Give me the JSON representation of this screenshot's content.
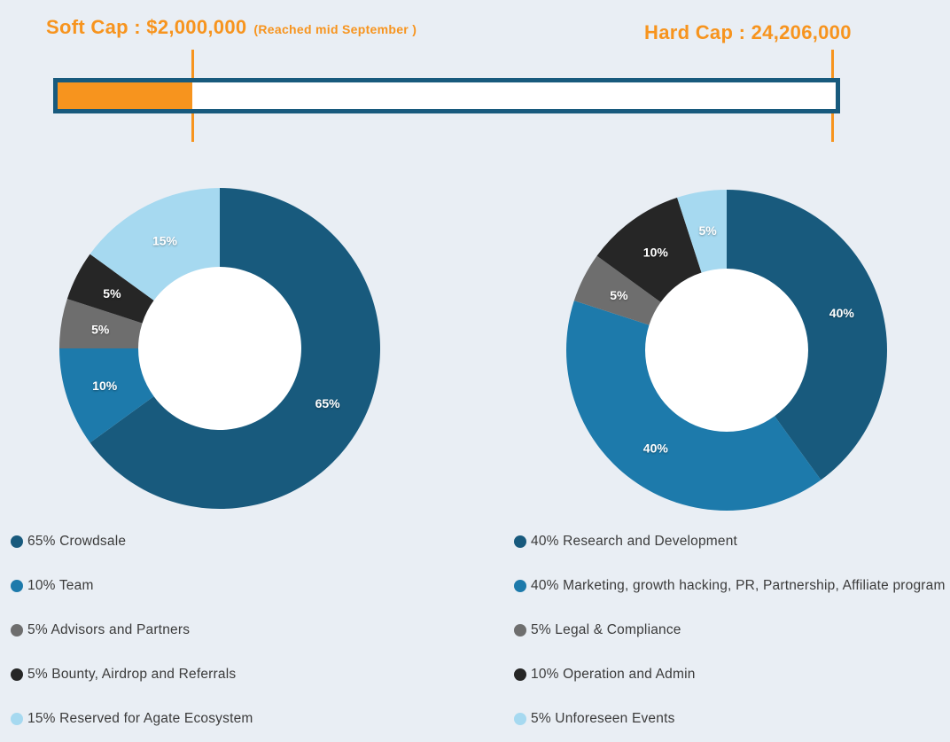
{
  "page": {
    "background": "#e9eef4"
  },
  "header": {
    "soft_cap_label": "Soft Cap : $2,000,000",
    "soft_cap_note": "(Reached mid September )",
    "hard_cap_label": "Hard Cap : 24,206,000",
    "accent_color": "#f7941e"
  },
  "progress_bar": {
    "fill_percent": 17.3,
    "fill_color": "#f7941e",
    "border_color": "#185a7d",
    "track_color": "#ffffff",
    "soft_cap_value": "$2,000,000",
    "hard_cap_value": "24,206,000"
  },
  "chart_data": [
    {
      "type": "pie",
      "variant": "donut",
      "start_angle": 0,
      "direction": "clockwise",
      "hole_color": "#ffffff",
      "slices": [
        {
          "label": "Crowdsale",
          "value": 65,
          "pct_label": "65%",
          "legend": "65% Crowdsale",
          "color": "#185a7d"
        },
        {
          "label": "Team",
          "value": 10,
          "pct_label": "10%",
          "legend": "10% Team",
          "color": "#1d7aab"
        },
        {
          "label": "Advisors and Partners",
          "value": 5,
          "pct_label": "5%",
          "legend": "5% Advisors and Partners",
          "color": "#6e6e6e"
        },
        {
          "label": "Bounty, Airdrop and Referrals",
          "value": 5,
          "pct_label": "5%",
          "legend": "5% Bounty, Airdrop and Referrals",
          "color": "#262626"
        },
        {
          "label": "Reserved for Agate Ecosystem",
          "value": 15,
          "pct_label": "15%",
          "legend": "15% Reserved for Agate Ecosystem",
          "color": "#a6d9f0"
        }
      ]
    },
    {
      "type": "pie",
      "variant": "donut",
      "start_angle": 0,
      "direction": "clockwise",
      "hole_color": "#ffffff",
      "slices": [
        {
          "label": "Research and Development",
          "value": 40,
          "pct_label": "40%",
          "legend": "40% Research and Development",
          "color": "#185a7d"
        },
        {
          "label": "Marketing, growth hacking, PR, Partnership, Affiliate program",
          "value": 40,
          "pct_label": "40%",
          "legend": "40% Marketing, growth hacking, PR, Partnership, Affiliate program",
          "color": "#1d7aab"
        },
        {
          "label": "Legal & Compliance",
          "value": 5,
          "pct_label": "5%",
          "legend": "5% Legal & Compliance",
          "color": "#6e6e6e"
        },
        {
          "label": "Operation and Admin",
          "value": 10,
          "pct_label": "10%",
          "legend": "10% Operation and Admin",
          "color": "#262626"
        },
        {
          "label": "Unforeseen Events",
          "value": 5,
          "pct_label": "5%",
          "legend": "5% Unforeseen Events",
          "color": "#a6d9f0"
        }
      ]
    }
  ]
}
